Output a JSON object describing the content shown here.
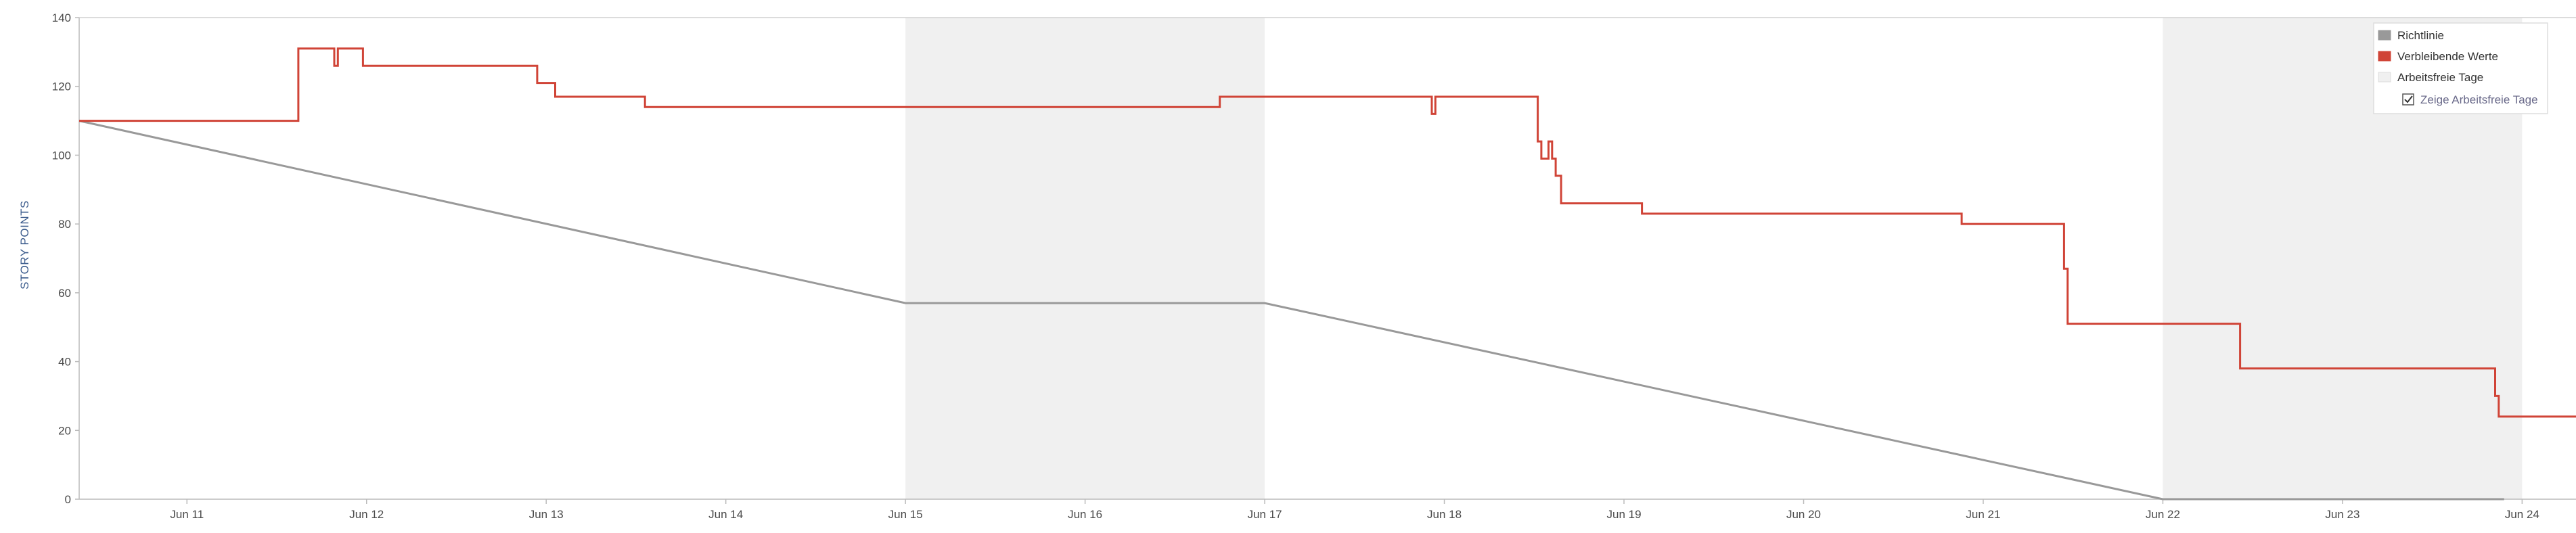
{
  "chart_data": {
    "type": "line",
    "ylabel": "STORY POINTS",
    "ylim": [
      0,
      140
    ],
    "y_ticks": [
      0,
      20,
      40,
      60,
      80,
      100,
      120,
      140
    ],
    "x_ticks": [
      "Jun 11",
      "Jun 12",
      "Jun 13",
      "Jun 14",
      "Jun 15",
      "Jun 16",
      "Jun 17",
      "Jun 18",
      "Jun 19",
      "Jun 20",
      "Jun 21",
      "Jun 22",
      "Jun 23",
      "Jun 24"
    ],
    "x_range_days": [
      10.4,
      24.3
    ],
    "grid": false,
    "non_working_days": [
      [
        15,
        17
      ],
      [
        22,
        24
      ]
    ],
    "series": [
      {
        "name": "Richtlinie",
        "color": "#999999",
        "points": [
          [
            10.4,
            110
          ],
          [
            15,
            57
          ],
          [
            17,
            57
          ],
          [
            22,
            0
          ],
          [
            23.9,
            0
          ]
        ]
      },
      {
        "name": "Verbleibende Werte",
        "color": "#d04437",
        "step": true,
        "points": [
          [
            10.4,
            110
          ],
          [
            11.62,
            131
          ],
          [
            11.82,
            126
          ],
          [
            11.84,
            131
          ],
          [
            11.98,
            126
          ],
          [
            12.95,
            121
          ],
          [
            13.05,
            117
          ],
          [
            13.55,
            114
          ],
          [
            16.75,
            117
          ],
          [
            17.93,
            112
          ],
          [
            17.95,
            117
          ],
          [
            18.52,
            104
          ],
          [
            18.54,
            99
          ],
          [
            18.58,
            104
          ],
          [
            18.6,
            99
          ],
          [
            18.62,
            94
          ],
          [
            18.65,
            86
          ],
          [
            19.1,
            83
          ],
          [
            20.88,
            80
          ],
          [
            21.45,
            67
          ],
          [
            21.47,
            51
          ],
          [
            22.43,
            38
          ],
          [
            23.85,
            30
          ],
          [
            23.87,
            24
          ],
          [
            24.3,
            24
          ]
        ]
      }
    ],
    "legend_position": "top-right",
    "legend": {
      "items": [
        {
          "label": "Richtlinie",
          "color": "#999999"
        },
        {
          "label": "Verbleibende Werte",
          "color": "#d04437"
        },
        {
          "label": "Arbeitsfreie Tage",
          "color": "#f0f0f0"
        }
      ],
      "checkbox_label": "Zeige Arbeitsfreie Tage",
      "checkbox_checked": true
    }
  }
}
